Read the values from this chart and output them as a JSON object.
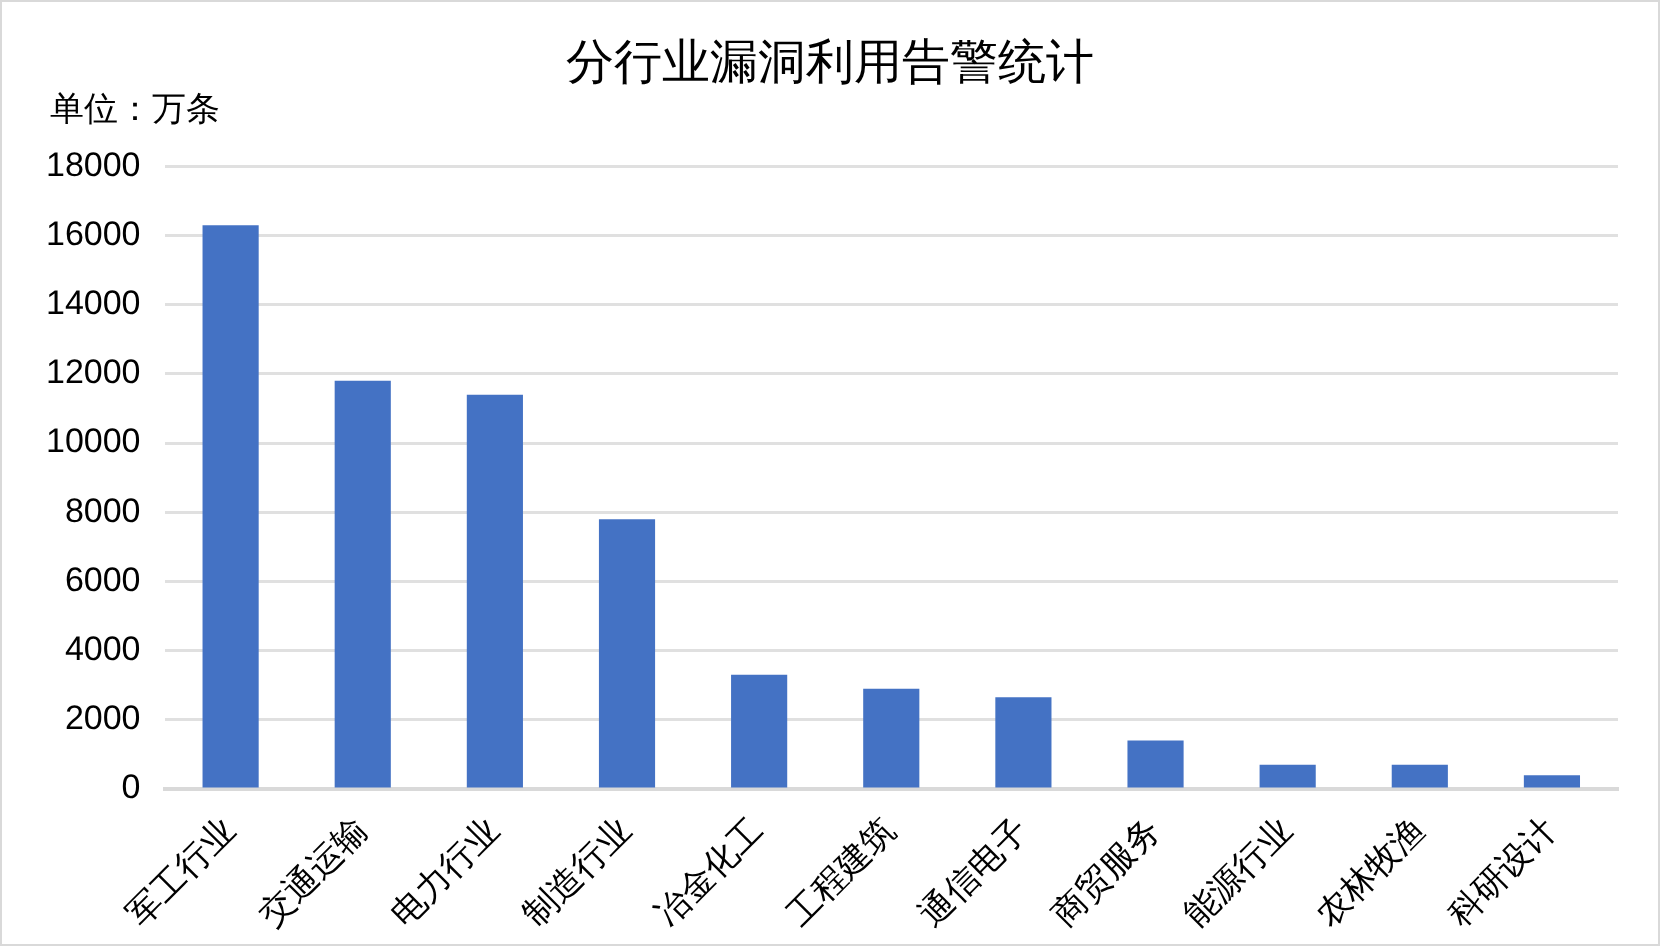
{
  "chart_data": {
    "type": "bar",
    "title": "分行业漏洞利用告警统计",
    "ylabel": "单位：万条",
    "categories": [
      "军工行业",
      "交通运输",
      "电力行业",
      "制造行业",
      "冶金化工",
      "工程建筑",
      "通信电子",
      "商贸服务",
      "能源行业",
      "农林牧渔",
      "科研设计"
    ],
    "values": [
      16300,
      11800,
      11400,
      7800,
      3300,
      2900,
      2650,
      1400,
      700,
      700,
      400
    ],
    "color": "#4472c4",
    "ylim": [
      0,
      18000
    ],
    "yticks": [
      0,
      2000,
      4000,
      6000,
      8000,
      10000,
      12000,
      14000,
      16000,
      18000
    ],
    "grid": "y",
    "legend": false
  }
}
